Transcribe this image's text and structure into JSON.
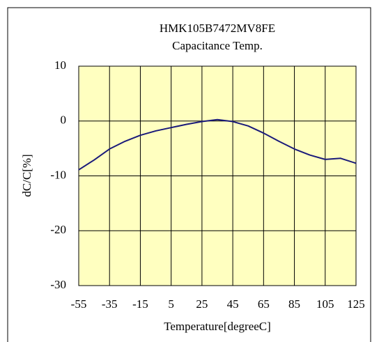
{
  "chart_data": {
    "type": "line",
    "title": "HMK105B7472MV8FE",
    "subtitle": "Capacitance Temp.",
    "xlabel": "Temperature[degreeC]",
    "ylabel": "dC/C[%]",
    "x": [
      -55,
      -45,
      -35,
      -25,
      -15,
      -5,
      5,
      15,
      25,
      35,
      45,
      55,
      65,
      75,
      85,
      95,
      105,
      115,
      125
    ],
    "series": [
      {
        "name": "HMK105B7472MV8FE",
        "color": "#1a1a7a",
        "values": [
          -8.9,
          -7.1,
          -5.1,
          -3.7,
          -2.6,
          -1.8,
          -1.2,
          -0.6,
          -0.1,
          0.25,
          -0.1,
          -0.9,
          -2.2,
          -3.7,
          -5.1,
          -6.2,
          -7.0,
          -6.8,
          -7.7
        ]
      }
    ],
    "xlim": [
      -55,
      125
    ],
    "xticks": [
      -55,
      -35,
      -15,
      5,
      25,
      45,
      65,
      85,
      105,
      125
    ],
    "ylim": [
      -30,
      10
    ],
    "yticks": [
      -30,
      -20,
      -10,
      0,
      10
    ],
    "grid": true
  }
}
